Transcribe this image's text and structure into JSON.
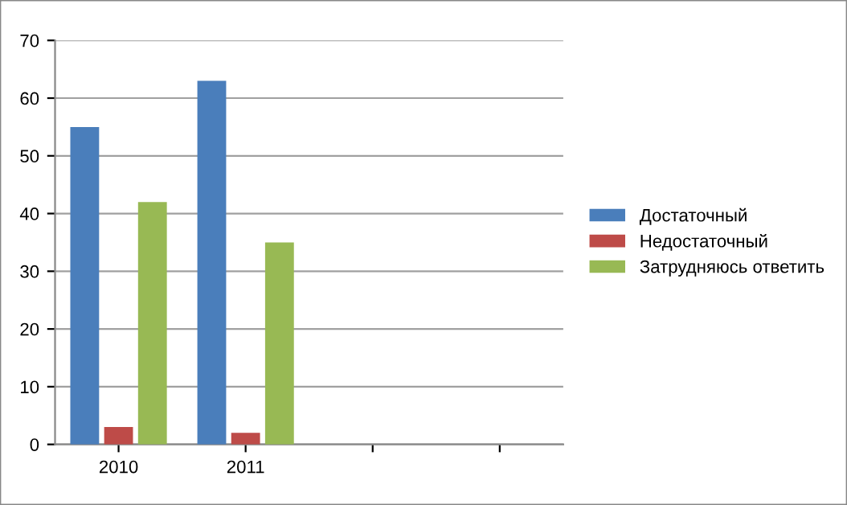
{
  "chart_data": {
    "type": "bar",
    "categories": [
      "2010",
      "2011",
      null,
      null
    ],
    "series": [
      {
        "name": "Достаточный",
        "color": "#4a7ebb",
        "values": [
          55,
          63,
          null,
          null
        ]
      },
      {
        "name": "Недостаточный",
        "color": "#be4b48",
        "values": [
          3,
          2,
          null,
          null
        ]
      },
      {
        "name": "Затрудняюсь ответить",
        "color": "#98b954",
        "values": [
          42,
          35,
          null,
          null
        ]
      }
    ],
    "ylim": [
      0,
      70
    ],
    "yticks": [
      0,
      10,
      20,
      30,
      40,
      50,
      60,
      70
    ],
    "grid": "y",
    "legend": "right"
  }
}
